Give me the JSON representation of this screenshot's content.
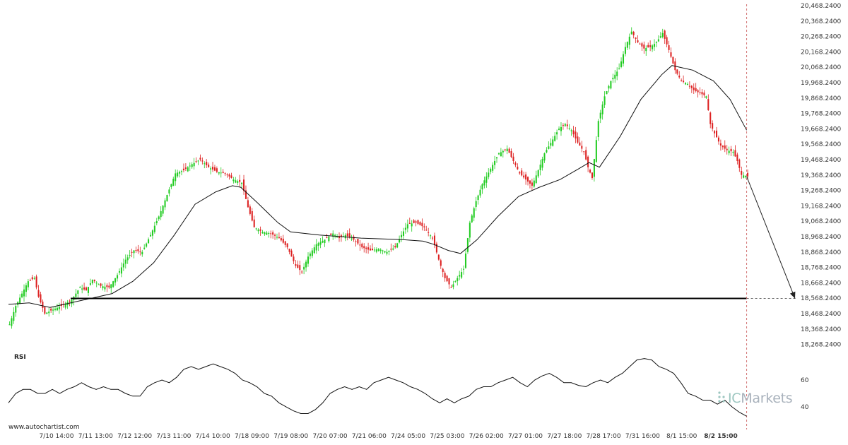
{
  "chart_data": [
    {
      "type": "candlestick",
      "title": "",
      "y_tick_labels": [
        "20,468.2400",
        "20,368.2400",
        "20,268.2400",
        "20,168.2400",
        "20,068.2400",
        "19,968.2400",
        "19,868.2400",
        "19,768.2400",
        "19,668.2400",
        "19,568.2400",
        "19,468.2400",
        "19,368.2400",
        "19,268.2400",
        "19,168.2400",
        "19,068.2400",
        "18,968.2400",
        "18,868.2400",
        "18,768.2400",
        "18,668.2400",
        "18,568.2400",
        "18,468.2400",
        "18,368.2400",
        "18,268.2400"
      ],
      "ylim": [
        18268.24,
        20468.24
      ],
      "x_tick_labels": [
        "7/10 14:00",
        "7/11 13:00",
        "7/12 12:00",
        "7/13 11:00",
        "7/14 10:00",
        "7/18 09:00",
        "7/19 08:00",
        "7/20 07:00",
        "7/21 06:00",
        "7/24 05:00",
        "7/25 03:00",
        "7/26 02:00",
        "7/27 01:00",
        "7/27 18:00",
        "7/28 17:00",
        "7/31 16:00",
        "8/1 15:00",
        "8/2 15:00"
      ],
      "highlighted_x_label": "8/2 15:00",
      "price_path": [
        [
          0,
          18400
        ],
        [
          3,
          18520
        ],
        [
          6,
          18600
        ],
        [
          9,
          18680
        ],
        [
          12,
          18700
        ],
        [
          14,
          18580
        ],
        [
          17,
          18470
        ],
        [
          20,
          18490
        ],
        [
          25,
          18520
        ],
        [
          30,
          18560
        ],
        [
          34,
          18640
        ],
        [
          37,
          18620
        ],
        [
          40,
          18690
        ],
        [
          44,
          18650
        ],
        [
          48,
          18640
        ],
        [
          52,
          18720
        ],
        [
          56,
          18820
        ],
        [
          60,
          18880
        ],
        [
          64,
          18870
        ],
        [
          68,
          18980
        ],
        [
          72,
          19100
        ],
        [
          76,
          19240
        ],
        [
          80,
          19380
        ],
        [
          84,
          19400
        ],
        [
          88,
          19440
        ],
        [
          92,
          19470
        ],
        [
          96,
          19420
        ],
        [
          100,
          19390
        ],
        [
          104,
          19380
        ],
        [
          108,
          19340
        ],
        [
          112,
          19320
        ],
        [
          115,
          19160
        ],
        [
          118,
          19030
        ],
        [
          122,
          19000
        ],
        [
          126,
          18990
        ],
        [
          130,
          18960
        ],
        [
          134,
          18900
        ],
        [
          138,
          18780
        ],
        [
          141,
          18740
        ],
        [
          144,
          18840
        ],
        [
          148,
          18920
        ],
        [
          152,
          18950
        ],
        [
          156,
          18990
        ],
        [
          159,
          18960
        ],
        [
          162,
          18980
        ],
        [
          166,
          18950
        ],
        [
          170,
          18900
        ],
        [
          174,
          18880
        ],
        [
          178,
          18890
        ],
        [
          182,
          18870
        ],
        [
          186,
          18900
        ],
        [
          189,
          18980
        ],
        [
          192,
          19050
        ],
        [
          196,
          19060
        ],
        [
          200,
          19030
        ],
        [
          204,
          18960
        ],
        [
          207,
          18820
        ],
        [
          210,
          18700
        ],
        [
          213,
          18640
        ],
        [
          216,
          18700
        ],
        [
          219,
          18760
        ],
        [
          222,
          19060
        ],
        [
          225,
          19200
        ],
        [
          228,
          19310
        ],
        [
          232,
          19410
        ],
        [
          236,
          19510
        ],
        [
          240,
          19540
        ],
        [
          243,
          19460
        ],
        [
          246,
          19380
        ],
        [
          249,
          19340
        ],
        [
          252,
          19300
        ],
        [
          255,
          19400
        ],
        [
          258,
          19510
        ],
        [
          262,
          19600
        ],
        [
          265,
          19670
        ],
        [
          268,
          19700
        ],
        [
          271,
          19660
        ],
        [
          274,
          19580
        ],
        [
          277,
          19520
        ],
        [
          279,
          19420
        ],
        [
          281,
          19350
        ],
        [
          284,
          19720
        ],
        [
          287,
          19880
        ],
        [
          290,
          19980
        ],
        [
          294,
          20060
        ],
        [
          297,
          20200
        ],
        [
          300,
          20300
        ],
        [
          303,
          20230
        ],
        [
          306,
          20190
        ],
        [
          309,
          20200
        ],
        [
          312,
          20230
        ],
        [
          315,
          20290
        ],
        [
          318,
          20180
        ],
        [
          321,
          20050
        ],
        [
          324,
          19980
        ],
        [
          327,
          19960
        ],
        [
          330,
          19920
        ],
        [
          333,
          19900
        ],
        [
          336,
          19880
        ],
        [
          338,
          19700
        ],
        [
          340,
          19640
        ],
        [
          343,
          19560
        ],
        [
          346,
          19530
        ],
        [
          349,
          19520
        ],
        [
          351,
          19460
        ],
        [
          353,
          19370
        ],
        [
          356,
          19360
        ]
      ],
      "moving_average_path": [
        [
          0,
          18530
        ],
        [
          10,
          18540
        ],
        [
          20,
          18510
        ],
        [
          30,
          18540
        ],
        [
          40,
          18570
        ],
        [
          50,
          18600
        ],
        [
          60,
          18680
        ],
        [
          70,
          18800
        ],
        [
          80,
          18980
        ],
        [
          90,
          19180
        ],
        [
          100,
          19260
        ],
        [
          108,
          19300
        ],
        [
          112,
          19290
        ],
        [
          120,
          19190
        ],
        [
          130,
          19060
        ],
        [
          136,
          19000
        ],
        [
          150,
          18980
        ],
        [
          170,
          18960
        ],
        [
          190,
          18950
        ],
        [
          200,
          18940
        ],
        [
          205,
          18920
        ],
        [
          212,
          18880
        ],
        [
          218,
          18860
        ],
        [
          226,
          18950
        ],
        [
          236,
          19100
        ],
        [
          246,
          19230
        ],
        [
          256,
          19290
        ],
        [
          266,
          19340
        ],
        [
          275,
          19410
        ],
        [
          280,
          19450
        ],
        [
          285,
          19420
        ],
        [
          295,
          19620
        ],
        [
          305,
          19860
        ],
        [
          315,
          20020
        ],
        [
          320,
          20080
        ],
        [
          330,
          20050
        ],
        [
          340,
          19980
        ],
        [
          348,
          19860
        ],
        [
          356,
          19660
        ]
      ],
      "support_level": 18568.24,
      "projected_price": 18568.24,
      "end_index": 356,
      "bar_count": 380,
      "bullish_color": "#22cc22",
      "bearish_color": "#dd2222",
      "line_color": "#111111"
    },
    {
      "type": "line",
      "title": "RSI",
      "y_tick_labels": [
        "60",
        "40"
      ],
      "ylim": [
        30,
        80
      ],
      "values": [
        43,
        50,
        53,
        53,
        50,
        50,
        53,
        50,
        53,
        55,
        58,
        55,
        53,
        55,
        53,
        53,
        50,
        48,
        48,
        55,
        58,
        60,
        58,
        62,
        68,
        70,
        68,
        70,
        72,
        70,
        68,
        65,
        60,
        58,
        55,
        50,
        48,
        43,
        40,
        37,
        35,
        35,
        38,
        43,
        50,
        53,
        55,
        53,
        55,
        53,
        58,
        60,
        62,
        60,
        58,
        55,
        53,
        50,
        46,
        43,
        46,
        43,
        46,
        48,
        53,
        55,
        55,
        58,
        60,
        62,
        58,
        55,
        60,
        63,
        65,
        62,
        58,
        58,
        56,
        55,
        58,
        60,
        58,
        62,
        65,
        70,
        75,
        76,
        75,
        70,
        68,
        65,
        58,
        50,
        48,
        45,
        45,
        42,
        45,
        40,
        36,
        33
      ]
    }
  ],
  "panel_label": "RSI",
  "watermark": {
    "prefix": "IC",
    "suffix": "Markets"
  },
  "source": "www.autochartist.com"
}
